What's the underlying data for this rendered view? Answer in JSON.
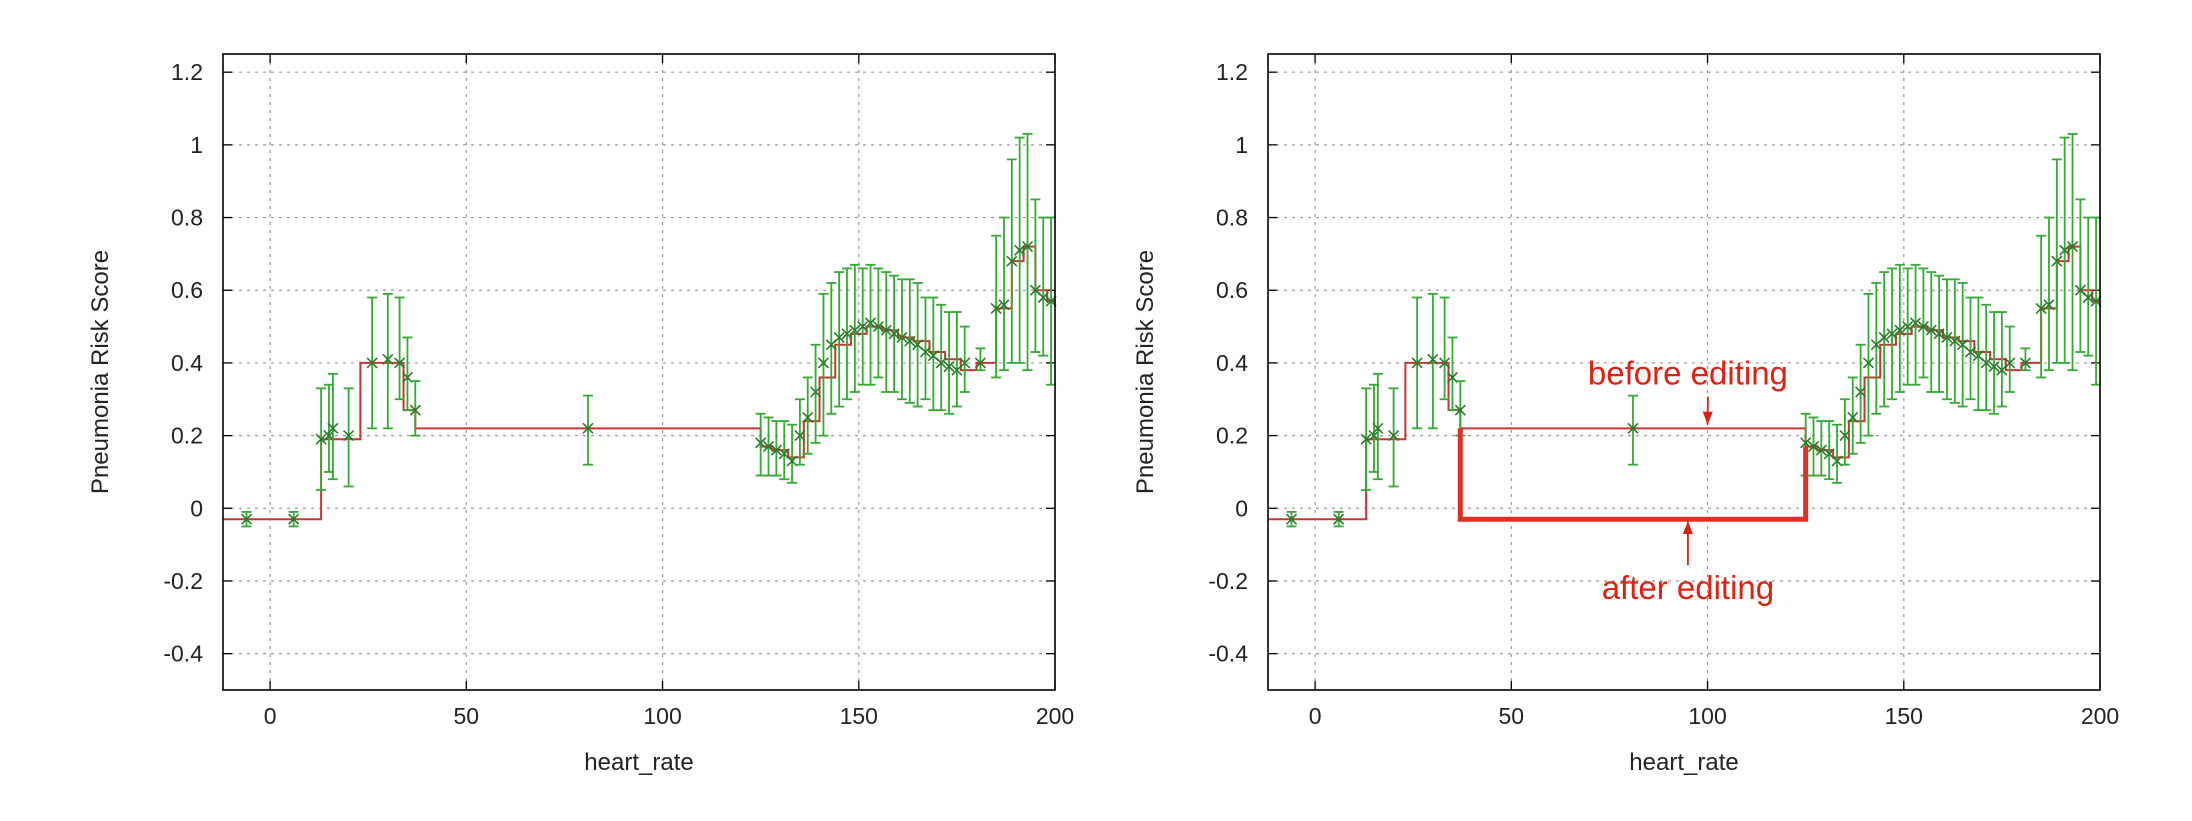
{
  "colors": {
    "step_line": "#cc3333",
    "error_bar": "#33aa33",
    "mean_marker": "#2a7a2a",
    "edited_line": "#e03020",
    "annotation": "#e02010",
    "grid": "#999999",
    "frame": "#000000"
  },
  "chart_data": [
    {
      "type": "line",
      "title": "",
      "xlabel": "heart_rate",
      "ylabel": "Pneumonia Risk Score",
      "xlim": [
        -12,
        200
      ],
      "ylim": [
        -0.5,
        1.25
      ],
      "grid": true,
      "x_ticks": [
        "0",
        "50",
        "100",
        "150",
        "200"
      ],
      "y_ticks": [
        "1.2",
        "1",
        "0.8",
        "0.6",
        "0.4",
        "0.2",
        "0",
        "-0.2",
        "-0.4"
      ],
      "series": [
        {
          "kind": "step",
          "x": [
            -12,
            12,
            13,
            22,
            23,
            33,
            34,
            36,
            37,
            124,
            125,
            128,
            132,
            136,
            140,
            144,
            148,
            152,
            156,
            160,
            164,
            168,
            172,
            176,
            180,
            184,
            185,
            188,
            189,
            192,
            195,
            198,
            200
          ],
          "y": [
            -0.03,
            -0.03,
            0.19,
            0.19,
            0.4,
            0.4,
            0.27,
            0.27,
            0.22,
            0.22,
            0.17,
            0.16,
            0.14,
            0.24,
            0.36,
            0.45,
            0.48,
            0.5,
            0.49,
            0.47,
            0.46,
            0.43,
            0.41,
            0.38,
            0.4,
            0.4,
            0.55,
            0.55,
            0.68,
            0.72,
            0.6,
            0.57,
            0.57
          ]
        },
        {
          "kind": "error_bars",
          "x": [
            -6,
            6,
            13,
            15,
            16,
            20,
            26,
            30,
            33,
            35,
            37,
            81,
            125,
            127,
            129,
            131,
            133,
            135,
            137,
            139,
            141,
            143,
            145,
            147,
            149,
            151,
            153,
            155,
            157,
            159,
            161,
            163,
            165,
            167,
            169,
            171,
            173,
            175,
            177,
            181,
            185,
            187,
            189,
            191,
            193,
            195,
            197,
            199
          ],
          "y": [
            -0.03,
            -0.03,
            0.19,
            0.2,
            0.22,
            0.2,
            0.4,
            0.41,
            0.4,
            0.36,
            0.27,
            0.22,
            0.18,
            0.17,
            0.16,
            0.15,
            0.13,
            0.2,
            0.25,
            0.32,
            0.4,
            0.45,
            0.47,
            0.48,
            0.49,
            0.5,
            0.51,
            0.5,
            0.49,
            0.48,
            0.47,
            0.46,
            0.45,
            0.43,
            0.42,
            0.4,
            0.39,
            0.38,
            0.4,
            0.4,
            0.55,
            0.56,
            0.68,
            0.71,
            0.72,
            0.6,
            0.58,
            0.57
          ],
          "lo": [
            -0.05,
            -0.05,
            0.05,
            0.1,
            0.08,
            0.06,
            0.22,
            0.22,
            0.3,
            0.27,
            0.2,
            0.12,
            0.09,
            0.09,
            0.09,
            0.08,
            0.07,
            0.12,
            0.15,
            0.18,
            0.2,
            0.26,
            0.28,
            0.3,
            0.32,
            0.34,
            0.34,
            0.36,
            0.32,
            0.32,
            0.3,
            0.29,
            0.28,
            0.3,
            0.27,
            0.27,
            0.26,
            0.28,
            0.32,
            0.38,
            0.36,
            0.38,
            0.4,
            0.4,
            0.38,
            0.43,
            0.42,
            0.34
          ],
          "hi": [
            -0.01,
            -0.01,
            0.33,
            0.34,
            0.37,
            0.33,
            0.58,
            0.59,
            0.58,
            0.47,
            0.35,
            0.31,
            0.26,
            0.25,
            0.24,
            0.24,
            0.23,
            0.3,
            0.36,
            0.45,
            0.59,
            0.62,
            0.65,
            0.66,
            0.67,
            0.66,
            0.67,
            0.66,
            0.65,
            0.64,
            0.63,
            0.63,
            0.62,
            0.58,
            0.58,
            0.56,
            0.54,
            0.54,
            0.5,
            0.44,
            0.75,
            0.8,
            0.96,
            1.02,
            1.03,
            0.85,
            0.8,
            0.8
          ]
        }
      ],
      "annotations": []
    },
    {
      "type": "line",
      "title": "",
      "xlabel": "heart_rate",
      "ylabel": "Pneumonia Risk Score",
      "xlim": [
        -12,
        200
      ],
      "ylim": [
        -0.5,
        1.25
      ],
      "grid": true,
      "x_ticks": [
        "0",
        "50",
        "100",
        "150",
        "200"
      ],
      "y_ticks": [
        "1.2",
        "1",
        "0.8",
        "0.6",
        "0.4",
        "0.2",
        "0",
        "-0.2",
        "-0.4"
      ],
      "series": [
        {
          "kind": "step",
          "x": [
            -12,
            12,
            13,
            22,
            23,
            33,
            34,
            36,
            37,
            124,
            125,
            128,
            132,
            136,
            140,
            144,
            148,
            152,
            156,
            160,
            164,
            168,
            172,
            176,
            180,
            184,
            185,
            188,
            189,
            192,
            195,
            198,
            200
          ],
          "y": [
            -0.03,
            -0.03,
            0.19,
            0.19,
            0.4,
            0.4,
            0.27,
            0.27,
            0.22,
            0.22,
            0.17,
            0.16,
            0.14,
            0.24,
            0.36,
            0.45,
            0.48,
            0.5,
            0.49,
            0.47,
            0.46,
            0.43,
            0.41,
            0.38,
            0.4,
            0.4,
            0.55,
            0.55,
            0.68,
            0.72,
            0.6,
            0.57,
            0.57
          ]
        },
        {
          "kind": "error_bars",
          "x": [
            -6,
            6,
            13,
            15,
            16,
            20,
            26,
            30,
            33,
            35,
            37,
            81,
            125,
            127,
            129,
            131,
            133,
            135,
            137,
            139,
            141,
            143,
            145,
            147,
            149,
            151,
            153,
            155,
            157,
            159,
            161,
            163,
            165,
            167,
            169,
            171,
            173,
            175,
            177,
            181,
            185,
            187,
            189,
            191,
            193,
            195,
            197,
            199
          ],
          "y": [
            -0.03,
            -0.03,
            0.19,
            0.2,
            0.22,
            0.2,
            0.4,
            0.41,
            0.4,
            0.36,
            0.27,
            0.22,
            0.18,
            0.17,
            0.16,
            0.15,
            0.13,
            0.2,
            0.25,
            0.32,
            0.4,
            0.45,
            0.47,
            0.48,
            0.49,
            0.5,
            0.51,
            0.5,
            0.49,
            0.48,
            0.47,
            0.46,
            0.45,
            0.43,
            0.42,
            0.4,
            0.39,
            0.38,
            0.4,
            0.4,
            0.55,
            0.56,
            0.68,
            0.71,
            0.72,
            0.6,
            0.58,
            0.57
          ],
          "lo": [
            -0.05,
            -0.05,
            0.05,
            0.1,
            0.08,
            0.06,
            0.22,
            0.22,
            0.3,
            0.27,
            0.2,
            0.12,
            0.09,
            0.09,
            0.09,
            0.08,
            0.07,
            0.12,
            0.15,
            0.18,
            0.2,
            0.26,
            0.28,
            0.3,
            0.32,
            0.34,
            0.34,
            0.36,
            0.32,
            0.32,
            0.3,
            0.29,
            0.28,
            0.3,
            0.27,
            0.27,
            0.26,
            0.28,
            0.32,
            0.38,
            0.36,
            0.38,
            0.4,
            0.4,
            0.38,
            0.43,
            0.42,
            0.34
          ],
          "hi": [
            -0.01,
            -0.01,
            0.33,
            0.34,
            0.37,
            0.33,
            0.58,
            0.59,
            0.58,
            0.47,
            0.35,
            0.31,
            0.26,
            0.25,
            0.24,
            0.24,
            0.23,
            0.3,
            0.36,
            0.45,
            0.59,
            0.62,
            0.65,
            0.66,
            0.67,
            0.66,
            0.67,
            0.66,
            0.65,
            0.64,
            0.63,
            0.63,
            0.62,
            0.58,
            0.58,
            0.56,
            0.54,
            0.54,
            0.5,
            0.44,
            0.75,
            0.8,
            0.96,
            1.02,
            1.03,
            0.85,
            0.8,
            0.8
          ]
        },
        {
          "kind": "edited_segment",
          "x": [
            37,
            37,
            125,
            125
          ],
          "y": [
            0.22,
            -0.03,
            -0.03,
            0.17
          ]
        }
      ],
      "annotations": [
        {
          "text": "before editing",
          "x": 95,
          "y": 0.34,
          "arrow_to": [
            100,
            0.23
          ]
        },
        {
          "text": "after editing",
          "x": 95,
          "y": -0.25,
          "arrow_to": [
            95,
            -0.035
          ]
        }
      ]
    }
  ]
}
